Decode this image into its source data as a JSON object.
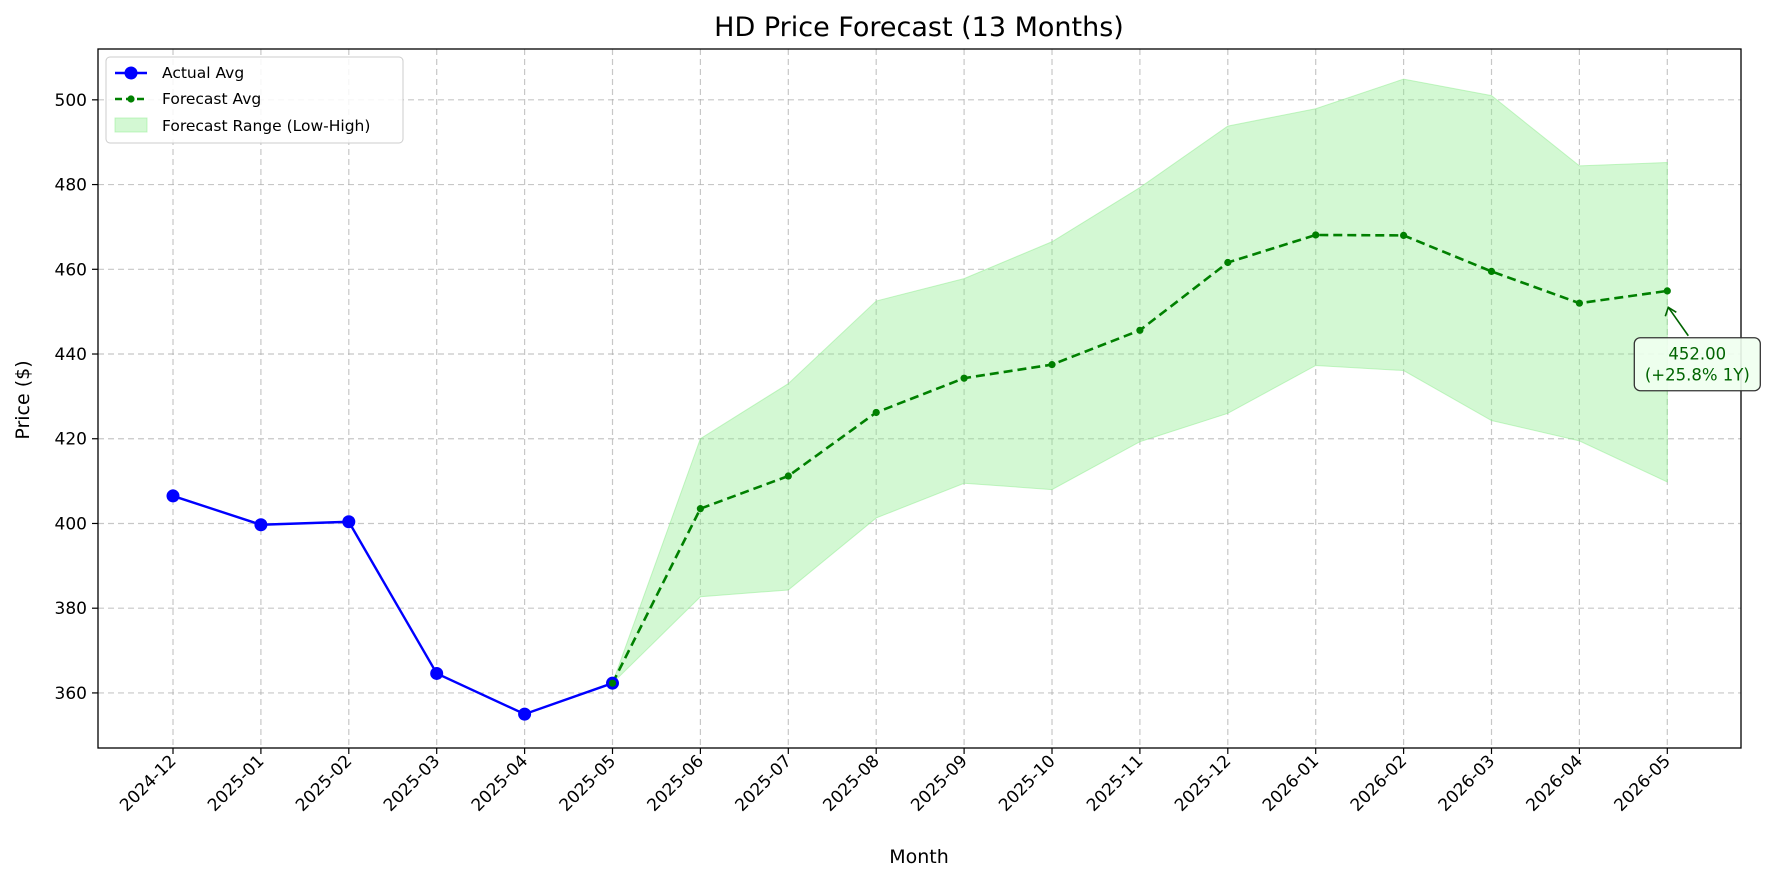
{
  "chart_data": {
    "type": "line",
    "title": "HD Price Forecast (13 Months)",
    "xlabel": "Month",
    "ylabel": "Price ($)",
    "categories": [
      "2024-12",
      "2025-01",
      "2025-02",
      "2025-03",
      "2025-04",
      "2025-05",
      "2025-06",
      "2025-07",
      "2025-08",
      "2025-09",
      "2025-10",
      "2025-11",
      "2025-12",
      "2026-01",
      "2026-02",
      "2026-03",
      "2026-04",
      "2026-05"
    ],
    "ylim": [
      347,
      512
    ],
    "yticks": [
      360,
      380,
      400,
      420,
      440,
      460,
      480,
      500
    ],
    "grid": true,
    "legend_position": "top-left",
    "series": [
      {
        "name": "Actual Avg",
        "color": "#0000ff",
        "style": "solid-circle-markers",
        "x": [
          "2024-12",
          "2025-01",
          "2025-02",
          "2025-03",
          "2025-04",
          "2025-05"
        ],
        "values": [
          406.5,
          399.7,
          400.4,
          364.6,
          355.0,
          362.3
        ]
      },
      {
        "name": "Forecast Avg",
        "color": "#008000",
        "style": "dashed-dot-markers",
        "x": [
          "2025-05",
          "2025-06",
          "2025-07",
          "2025-08",
          "2025-09",
          "2025-10",
          "2025-11",
          "2025-12",
          "2026-01",
          "2026-02",
          "2026-03",
          "2026-04",
          "2026-05"
        ],
        "values": [
          362.3,
          403.5,
          411.2,
          426.2,
          434.3,
          437.5,
          445.6,
          461.6,
          468.1,
          468.0,
          459.5,
          452.0,
          454.9
        ]
      }
    ],
    "range": {
      "name": "Forecast Range (Low-High)",
      "color": "#90ee90",
      "x": [
        "2025-05",
        "2025-06",
        "2025-07",
        "2025-08",
        "2025-09",
        "2025-10",
        "2025-11",
        "2025-12",
        "2026-01",
        "2026-02",
        "2026-03",
        "2026-04",
        "2026-05"
      ],
      "low": [
        362.3,
        382.7,
        384.3,
        401.3,
        409.5,
        408.0,
        419.3,
        426.0,
        437.3,
        436.1,
        424.3,
        419.5,
        409.8
      ],
      "high": [
        362.3,
        420.0,
        433.0,
        452.5,
        457.8,
        466.5,
        479.3,
        493.8,
        497.9,
        504.9,
        501.0,
        484.4,
        485.2
      ]
    },
    "annotation": {
      "line1": "452.00",
      "line2": "(+25.8% 1Y)",
      "target_x": "2026-05",
      "target_y": 451.5,
      "text_y": 437,
      "color": "#006400"
    }
  }
}
